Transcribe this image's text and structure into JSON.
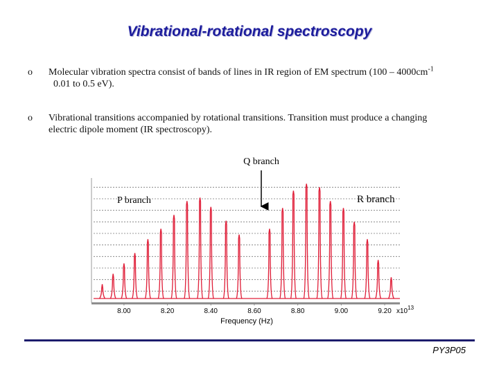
{
  "header": {
    "title": "Vibrational-rotational spectroscopy"
  },
  "bullets": [
    {
      "marker": "o",
      "parts": [
        "Molecular vibration spectra consist of bands of lines in IR region of EM spectrum (100 – 4000cm",
        "-1",
        "  0.01 to 0.5 eV)."
      ]
    },
    {
      "marker": "o",
      "parts": [
        "Vibrational transitions accompanied by rotational transitions. Transition must produce a changing electric dipole moment (IR spectroscopy)."
      ]
    }
  ],
  "chart_data": {
    "type": "spectrum",
    "color": "#e0203a",
    "grid": true,
    "xlabel": "Frequency (Hz)",
    "x_exponent": [
      "x10",
      "13"
    ],
    "annotations": {
      "q": "Q branch",
      "p": "P branch",
      "r": "R branch"
    },
    "x": [
      7.9,
      7.95,
      8.0,
      8.05,
      8.11,
      8.17,
      8.23,
      8.29,
      8.35,
      8.4,
      8.47,
      8.53,
      8.67,
      8.73,
      8.78,
      8.84,
      8.9,
      8.95,
      9.01,
      9.06,
      9.12,
      9.17,
      9.23
    ],
    "values": [
      1.6,
      2.5,
      3.4,
      4.3,
      5.5,
      6.4,
      7.6,
      8.8,
      9.1,
      8.3,
      7.1,
      5.9,
      6.4,
      8.2,
      9.7,
      10.3,
      10.0,
      8.8,
      8.2,
      7.0,
      5.5,
      3.7,
      2.2
    ],
    "xlim": [
      7.86,
      9.27
    ],
    "ylim": [
      0,
      10.8
    ],
    "xticks": [
      {
        "value": 8.0,
        "label": "8.00"
      },
      {
        "value": 8.2,
        "label": "8.20"
      },
      {
        "value": 8.4,
        "label": "8.40"
      },
      {
        "value": 8.6,
        "label": "8.60"
      },
      {
        "value": 8.8,
        "label": "8.80"
      },
      {
        "value": 9.0,
        "label": "9.00"
      },
      {
        "value": 9.2,
        "label": "9.20"
      }
    ],
    "ygrid": [
      1,
      2,
      3,
      4,
      5,
      6,
      7,
      8,
      9,
      10
    ]
  },
  "footer": {
    "code": "PY3P05"
  }
}
